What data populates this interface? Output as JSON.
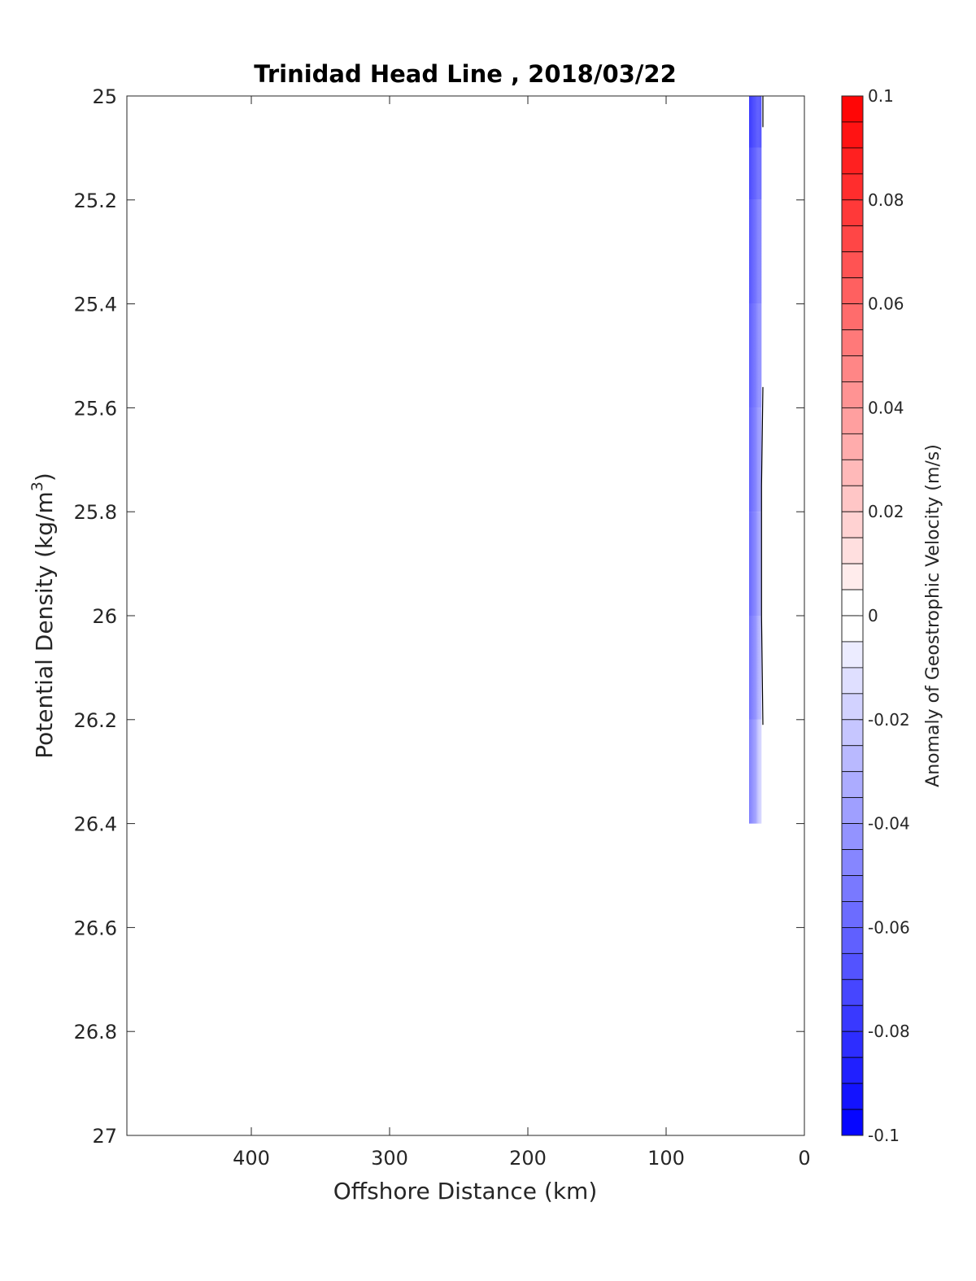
{
  "chart_data": {
    "type": "heatmap",
    "title": "Trinidad Head Line , 2018/03/22",
    "xlabel": "Offshore Distance (km)",
    "ylabel_main": "Potential Density (kg/m",
    "ylabel_sup": "3",
    "ylabel_close": ")",
    "colorbar_label": "Anomaly of Geostrophic Velocity (m/s)",
    "xlim": [
      490,
      0
    ],
    "x_reversed": true,
    "ylim": [
      25,
      27
    ],
    "y_reversed": true,
    "x_ticks": [
      400,
      300,
      200,
      100,
      0
    ],
    "x_tick_labels": [
      "400",
      "300",
      "200",
      "100",
      "0"
    ],
    "y_ticks": [
      25,
      25.2,
      25.4,
      25.6,
      25.8,
      26,
      26.2,
      26.4,
      26.6,
      26.8,
      27
    ],
    "y_tick_labels": [
      "25",
      "25.2",
      "25.4",
      "25.6",
      "25.8",
      "26",
      "26.2",
      "26.4",
      "26.6",
      "26.8",
      "27"
    ],
    "colorbar": {
      "range": [
        -0.1,
        0.1
      ],
      "levels": 40,
      "ticks": [
        0.1,
        0.08,
        0.06,
        0.04,
        0.02,
        0,
        -0.02,
        -0.04,
        -0.06,
        -0.08,
        -0.1
      ],
      "tick_labels": [
        "0.1",
        "0.08",
        "0.06",
        "0.04",
        "0.02",
        "0",
        "-0.02",
        "-0.04",
        "-0.06",
        "-0.08",
        "-0.1"
      ],
      "negative_color": "#0000ff",
      "zero_color": "#ffffff",
      "positive_color": "#ff0000"
    },
    "data_region": {
      "x_range_km": [
        40,
        31
      ],
      "y_range": [
        25,
        26.4
      ],
      "values": [
        {
          "y": 25.0,
          "v": -0.085
        },
        {
          "y": 25.1,
          "v": -0.07
        },
        {
          "y": 25.2,
          "v": -0.06
        },
        {
          "y": 25.4,
          "v": -0.05
        },
        {
          "y": 25.6,
          "v": -0.045
        },
        {
          "y": 25.8,
          "v": -0.04
        },
        {
          "y": 26.0,
          "v": -0.035
        },
        {
          "y": 26.2,
          "v": -0.025
        },
        {
          "y": 26.4,
          "v": -0.01
        }
      ]
    },
    "contour_lines": [
      {
        "points": [
          [
            30,
            25.0
          ],
          [
            30,
            25.06
          ]
        ]
      },
      {
        "points": [
          [
            30,
            25.56
          ],
          [
            31,
            25.75
          ],
          [
            31,
            26.0
          ],
          [
            30,
            26.21
          ]
        ]
      }
    ]
  }
}
